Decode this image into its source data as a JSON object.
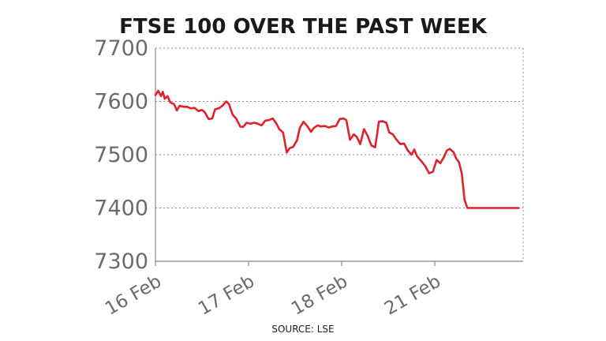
{
  "chart_data": {
    "type": "line",
    "title": "FTSE 100 OVER THE PAST WEEK",
    "source": "SOURCE: LSE",
    "xlabel": "",
    "ylabel": "",
    "ylim": [
      7300,
      7700
    ],
    "xlim": [
      0,
      3.92
    ],
    "yticks": [
      7300,
      7400,
      7500,
      7600,
      7700
    ],
    "xticks": [
      {
        "label": "16 Feb",
        "value": 0
      },
      {
        "label": "17 Feb",
        "value": 1
      },
      {
        "label": "18 Feb",
        "value": 2
      },
      {
        "label": "21 Feb",
        "value": 3
      }
    ],
    "grid": true,
    "line_color": "#e0202a",
    "series": [
      {
        "x": [
          0.0,
          0.03,
          0.06,
          0.08,
          0.1,
          0.13,
          0.16,
          0.2,
          0.23,
          0.26,
          0.3,
          0.34,
          0.38,
          0.42,
          0.46,
          0.5,
          0.53,
          0.57,
          0.61,
          0.64,
          0.68,
          0.72,
          0.76,
          0.79,
          0.83,
          0.87,
          0.91,
          0.94,
          0.98,
          1.02,
          1.06,
          1.1,
          1.14,
          1.18,
          1.22,
          1.26,
          1.3,
          1.33,
          1.37,
          1.41,
          1.44,
          1.48,
          1.52,
          1.55,
          1.59,
          1.63,
          1.67,
          1.7,
          1.74,
          1.78,
          1.82,
          1.86,
          1.9,
          1.94,
          1.98,
          2.02,
          2.05,
          2.09,
          2.13,
          2.16,
          2.2,
          2.24,
          2.28,
          2.32,
          2.36,
          2.4,
          2.44,
          2.48,
          2.51,
          2.55,
          2.59,
          2.63,
          2.67,
          2.71,
          2.75,
          2.78,
          2.81,
          2.86,
          2.9,
          2.94,
          2.98,
          3.02,
          3.06,
          3.1,
          3.13,
          3.16,
          3.2,
          3.23,
          3.26,
          3.29,
          3.32,
          3.35,
          3.38,
          3.41,
          3.45,
          3.49,
          3.53,
          3.57,
          3.61,
          3.65,
          3.69,
          3.73,
          3.77,
          3.81,
          3.84,
          3.86,
          3.88,
          3.9
        ],
        "y": [
          7612,
          7620,
          7610,
          7618,
          7605,
          7610,
          7598,
          7595,
          7583,
          7592,
          7590,
          7590,
          7587,
          7588,
          7582,
          7584,
          7580,
          7567,
          7568,
          7585,
          7587,
          7592,
          7600,
          7595,
          7575,
          7567,
          7553,
          7552,
          7560,
          7558,
          7560,
          7558,
          7555,
          7564,
          7565,
          7568,
          7558,
          7548,
          7542,
          7504,
          7512,
          7515,
          7527,
          7550,
          7562,
          7554,
          7543,
          7550,
          7555,
          7553,
          7554,
          7551,
          7553,
          7554,
          7567,
          7568,
          7565,
          7528,
          7538,
          7534,
          7520,
          7548,
          7535,
          7517,
          7514,
          7562,
          7563,
          7560,
          7542,
          7538,
          7528,
          7520,
          7521,
          7508,
          7500,
          7510,
          7497,
          7487,
          7478,
          7465,
          7468,
          7490,
          7484,
          7496,
          7508,
          7511,
          7505,
          7493,
          7486,
          7465,
          7415,
          7400,
          7400,
          7400,
          7400,
          7400,
          7400,
          7400,
          7400,
          7400,
          7400,
          7400,
          7400,
          7400,
          7400,
          7400,
          7400,
          7400
        ]
      }
    ]
  }
}
